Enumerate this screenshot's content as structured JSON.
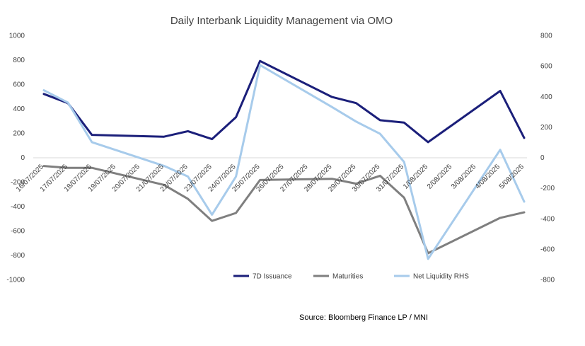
{
  "chart_data": {
    "type": "line",
    "title": "Daily Interbank Liquidity Management via OMO",
    "source": "Source: Bloomberg Finance LP / MNI",
    "categories": [
      "16/07/2025",
      "17/07/2025",
      "18/07/2025",
      "19/07/2025",
      "20/07/2025",
      "21/07/2025",
      "22/07/2025",
      "23/07/2025",
      "24/07/2025",
      "25/07/2025",
      "26/07/2025",
      "27/07/2025",
      "28/07/2025",
      "29/07/2025",
      "30/07/2025",
      "31/07/2025",
      "1/08/2025",
      "2/08/2025",
      "3/08/2025",
      "4/08/2025",
      "5/08/2025"
    ],
    "left_axis": {
      "min": -1000,
      "max": 1000,
      "ticks": [
        "1000",
        "800",
        "600",
        "400",
        "200",
        "0",
        "-200",
        "-400",
        "-600",
        "-800",
        "-1000"
      ]
    },
    "right_axis": {
      "min": -800,
      "max": 800,
      "ticks": [
        "800",
        "600",
        "400",
        "200",
        "0",
        "-200",
        "-400",
        "-600",
        "-800"
      ]
    },
    "series": [
      {
        "name": "7D Issuance",
        "axis": "left",
        "color": "#1b1f7a",
        "values": [
          520,
          445,
          185,
          null,
          null,
          170,
          215,
          150,
          330,
          790,
          null,
          null,
          495,
          445,
          305,
          285,
          125,
          null,
          null,
          545,
          160
        ]
      },
      {
        "name": "Maturities",
        "axis": "left",
        "color": "#7f7f7f",
        "values": [
          -70,
          -85,
          -85,
          null,
          null,
          -225,
          -340,
          -520,
          -455,
          -185,
          null,
          null,
          -175,
          -215,
          -150,
          -330,
          -785,
          null,
          null,
          -495,
          -450
        ]
      },
      {
        "name": "Net Liquidity RHS",
        "axis": "right",
        "color": "#a7cbeb",
        "values": [
          440,
          360,
          100,
          null,
          null,
          -55,
          -125,
          -375,
          -125,
          605,
          null,
          null,
          330,
          235,
          155,
          -30,
          -665,
          null,
          null,
          50,
          -290
        ]
      }
    ],
    "legend": [
      "7D Issuance",
      "Maturities",
      "Net Liquidity RHS"
    ],
    "legend_position": "bottom"
  }
}
